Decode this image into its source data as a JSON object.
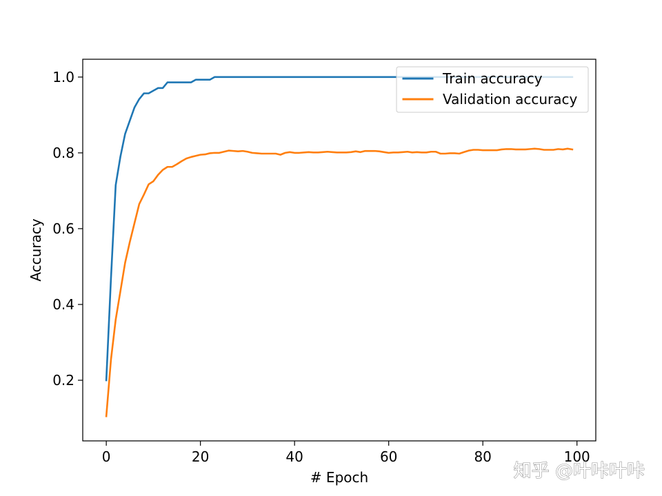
{
  "chart_data": {
    "type": "line",
    "title": "",
    "xlabel": "# Epoch",
    "ylabel": "Accuracy",
    "xlim": [
      -5,
      104
    ],
    "ylim": [
      0.04,
      1.047
    ],
    "xticks": [
      0,
      20,
      40,
      60,
      80,
      100
    ],
    "yticks": [
      0.2,
      0.4,
      0.6,
      0.8,
      1.0
    ],
    "xtick_labels": [
      "0",
      "20",
      "40",
      "60",
      "80",
      "100"
    ],
    "ytick_labels": [
      "0.2",
      "0.4",
      "0.6",
      "0.8",
      "1.0"
    ],
    "grid": false,
    "legend_position": "upper right",
    "series": [
      {
        "name": "Train accuracy",
        "color": "#1f77b4",
        "points": [
          [
            0,
            0.2
          ],
          [
            1,
            0.47
          ],
          [
            2,
            0.715
          ],
          [
            3,
            0.79
          ],
          [
            4,
            0.85
          ],
          [
            5,
            0.885
          ],
          [
            6,
            0.92
          ],
          [
            7,
            0.942
          ],
          [
            8,
            0.957
          ],
          [
            9,
            0.957
          ],
          [
            10,
            0.964
          ],
          [
            11,
            0.971
          ],
          [
            12,
            0.971
          ],
          [
            13,
            0.986
          ],
          [
            14,
            0.986
          ],
          [
            15,
            0.986
          ],
          [
            16,
            0.986
          ],
          [
            17,
            0.986
          ],
          [
            18,
            0.986
          ],
          [
            19,
            0.993
          ],
          [
            20,
            0.993
          ],
          [
            21,
            0.993
          ],
          [
            22,
            0.993
          ],
          [
            23,
            1.0
          ],
          [
            30,
            1.0
          ],
          [
            40,
            1.0
          ],
          [
            50,
            1.0
          ],
          [
            60,
            1.0
          ],
          [
            70,
            1.0
          ],
          [
            80,
            1.0
          ],
          [
            90,
            1.0
          ],
          [
            99,
            1.0
          ]
        ]
      },
      {
        "name": "Validation accuracy",
        "color": "#ff7f0e",
        "points": [
          [
            0,
            0.105
          ],
          [
            1,
            0.255
          ],
          [
            2,
            0.36
          ],
          [
            3,
            0.435
          ],
          [
            4,
            0.51
          ],
          [
            5,
            0.565
          ],
          [
            6,
            0.615
          ],
          [
            7,
            0.665
          ],
          [
            8,
            0.69
          ],
          [
            9,
            0.717
          ],
          [
            10,
            0.725
          ],
          [
            11,
            0.742
          ],
          [
            12,
            0.755
          ],
          [
            13,
            0.763
          ],
          [
            14,
            0.763
          ],
          [
            15,
            0.77
          ],
          [
            16,
            0.778
          ],
          [
            17,
            0.785
          ],
          [
            18,
            0.789
          ],
          [
            19,
            0.792
          ],
          [
            20,
            0.795
          ],
          [
            21,
            0.796
          ],
          [
            22,
            0.799
          ],
          [
            23,
            0.8
          ],
          [
            24,
            0.8
          ],
          [
            25,
            0.803
          ],
          [
            26,
            0.806
          ],
          [
            27,
            0.805
          ],
          [
            28,
            0.804
          ],
          [
            29,
            0.805
          ],
          [
            30,
            0.803
          ],
          [
            31,
            0.8
          ],
          [
            32,
            0.799
          ],
          [
            33,
            0.798
          ],
          [
            34,
            0.798
          ],
          [
            35,
            0.798
          ],
          [
            36,
            0.798
          ],
          [
            37,
            0.795
          ],
          [
            38,
            0.8
          ],
          [
            39,
            0.802
          ],
          [
            40,
            0.8
          ],
          [
            41,
            0.8
          ],
          [
            42,
            0.801
          ],
          [
            43,
            0.802
          ],
          [
            44,
            0.801
          ],
          [
            45,
            0.801
          ],
          [
            46,
            0.802
          ],
          [
            47,
            0.803
          ],
          [
            48,
            0.802
          ],
          [
            49,
            0.801
          ],
          [
            50,
            0.801
          ],
          [
            51,
            0.801
          ],
          [
            52,
            0.802
          ],
          [
            53,
            0.804
          ],
          [
            54,
            0.802
          ],
          [
            55,
            0.805
          ],
          [
            56,
            0.805
          ],
          [
            57,
            0.805
          ],
          [
            58,
            0.804
          ],
          [
            59,
            0.802
          ],
          [
            60,
            0.8
          ],
          [
            61,
            0.801
          ],
          [
            62,
            0.801
          ],
          [
            63,
            0.802
          ],
          [
            64,
            0.803
          ],
          [
            65,
            0.801
          ],
          [
            66,
            0.802
          ],
          [
            67,
            0.801
          ],
          [
            68,
            0.801
          ],
          [
            69,
            0.803
          ],
          [
            70,
            0.803
          ],
          [
            71,
            0.798
          ],
          [
            72,
            0.798
          ],
          [
            73,
            0.799
          ],
          [
            74,
            0.799
          ],
          [
            75,
            0.798
          ],
          [
            76,
            0.802
          ],
          [
            77,
            0.806
          ],
          [
            78,
            0.808
          ],
          [
            79,
            0.808
          ],
          [
            80,
            0.807
          ],
          [
            81,
            0.807
          ],
          [
            82,
            0.807
          ],
          [
            83,
            0.807
          ],
          [
            84,
            0.809
          ],
          [
            85,
            0.81
          ],
          [
            86,
            0.81
          ],
          [
            87,
            0.809
          ],
          [
            88,
            0.809
          ],
          [
            89,
            0.809
          ],
          [
            90,
            0.81
          ],
          [
            91,
            0.811
          ],
          [
            92,
            0.81
          ],
          [
            93,
            0.808
          ],
          [
            94,
            0.808
          ],
          [
            95,
            0.808
          ],
          [
            96,
            0.81
          ],
          [
            97,
            0.809
          ],
          [
            98,
            0.811
          ],
          [
            99,
            0.809
          ]
        ]
      }
    ]
  },
  "watermark": {
    "text": "知乎 @叶咔叶咔"
  }
}
